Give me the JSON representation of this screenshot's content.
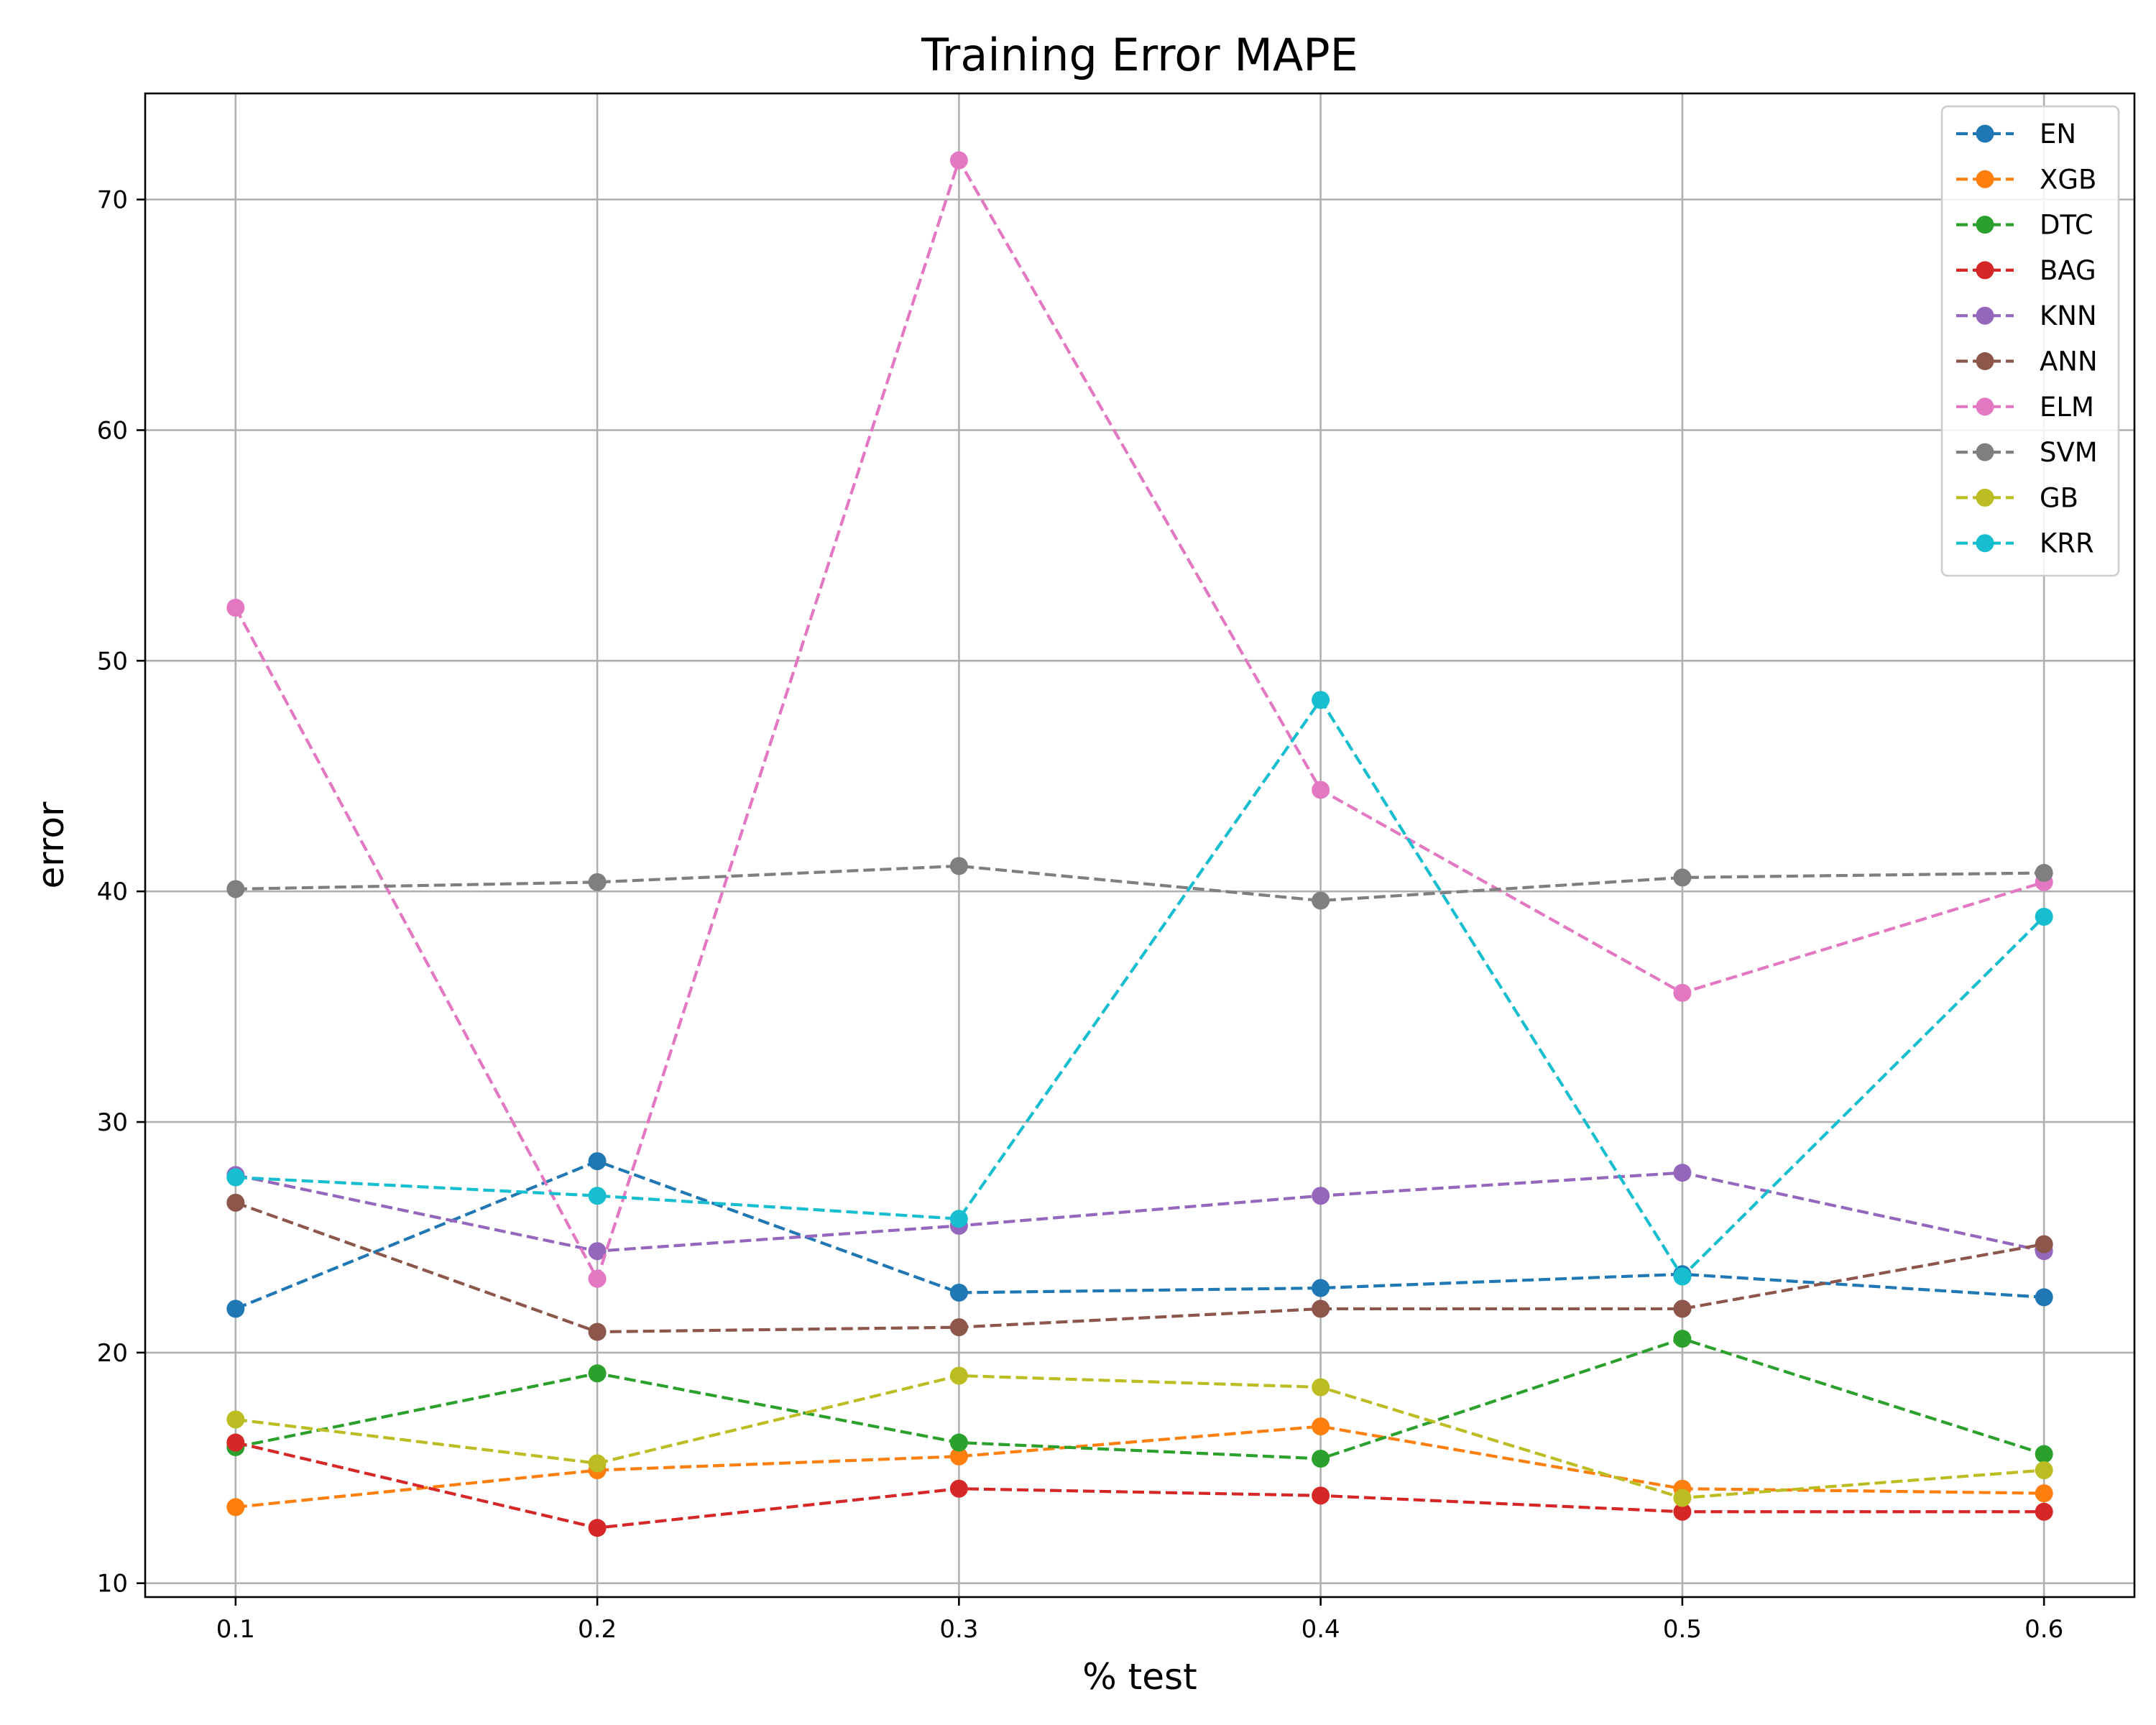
{
  "chart_data": {
    "type": "line",
    "title": "Training Error MAPE",
    "xlabel": "% test",
    "ylabel": "error",
    "x": [
      0.1,
      0.2,
      0.3,
      0.4,
      0.5,
      0.6
    ],
    "xticks": [
      "0.1",
      "0.2",
      "0.3",
      "0.4",
      "0.5",
      "0.6"
    ],
    "yticks": [
      "10",
      "20",
      "30",
      "40",
      "50",
      "60",
      "70"
    ],
    "xlim": [
      0.075,
      0.625
    ],
    "ylim": [
      9.4,
      74.6
    ],
    "grid": true,
    "legend_position": "top-right",
    "series": [
      {
        "name": "EN",
        "color": "#1f77b4",
        "values": [
          21.9,
          28.3,
          22.6,
          22.8,
          23.4,
          22.4
        ]
      },
      {
        "name": "XGB",
        "color": "#ff7f0e",
        "values": [
          13.3,
          14.9,
          15.5,
          16.8,
          14.1,
          13.9
        ]
      },
      {
        "name": "DTC",
        "color": "#2ca02c",
        "values": [
          15.9,
          19.1,
          16.1,
          15.4,
          20.6,
          15.6
        ]
      },
      {
        "name": "BAG",
        "color": "#d62728",
        "values": [
          16.1,
          12.4,
          14.1,
          13.8,
          13.1,
          13.1
        ]
      },
      {
        "name": "KNN",
        "color": "#9467bd",
        "values": [
          27.7,
          24.4,
          25.5,
          26.8,
          27.8,
          24.4
        ]
      },
      {
        "name": "ANN",
        "color": "#8c564b",
        "values": [
          26.5,
          20.9,
          21.1,
          21.9,
          21.9,
          24.7
        ]
      },
      {
        "name": "ELM",
        "color": "#e377c2",
        "values": [
          52.3,
          23.2,
          71.7,
          44.4,
          35.6,
          40.4
        ]
      },
      {
        "name": "SVM",
        "color": "#7f7f7f",
        "values": [
          40.1,
          40.4,
          41.1,
          39.6,
          40.6,
          40.8
        ]
      },
      {
        "name": "GB",
        "color": "#bcbd22",
        "values": [
          17.1,
          15.2,
          19.0,
          18.5,
          13.7,
          14.9
        ]
      },
      {
        "name": "KRR",
        "color": "#17becf",
        "values": [
          27.6,
          26.8,
          25.8,
          48.3,
          23.3,
          38.9
        ]
      }
    ]
  }
}
